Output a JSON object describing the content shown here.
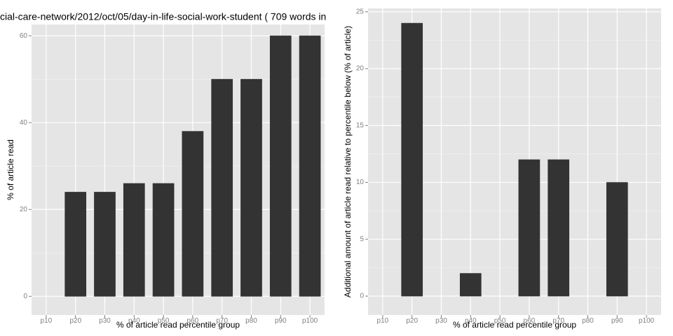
{
  "chart_data": [
    {
      "type": "bar",
      "title": "cial-care-network/2012/oct/05/day-in-life-social-work-student ( 709 words in",
      "x_label": "% of article read percentile group",
      "y_label": "% of article read",
      "categories": [
        "p10",
        "p20",
        "p30",
        "p40",
        "p50",
        "p60",
        "p70",
        "p80",
        "p90",
        "p100"
      ],
      "values": [
        0,
        24,
        24,
        26,
        26,
        38,
        50,
        50,
        60,
        60
      ],
      "color": "#333333",
      "ylim": [
        -4.3,
        62.6
      ],
      "yticks": [
        0,
        20,
        40,
        60
      ],
      "grid": true
    },
    {
      "type": "bar",
      "x_label": "% of article read percentile group",
      "y_label": "Additional amount of article read relative to percentile below (% of article)",
      "categories": [
        "p10",
        "p20",
        "p30",
        "p40",
        "p50",
        "p60",
        "p70",
        "p80",
        "p90",
        "p100"
      ],
      "values": [
        0,
        24,
        0,
        2,
        0,
        12,
        12,
        0,
        10,
        0
      ],
      "color": "#333333",
      "ylim": [
        -1.66,
        25.3
      ],
      "yticks": [
        0,
        5,
        10,
        15,
        20,
        25
      ],
      "grid": true
    }
  ]
}
